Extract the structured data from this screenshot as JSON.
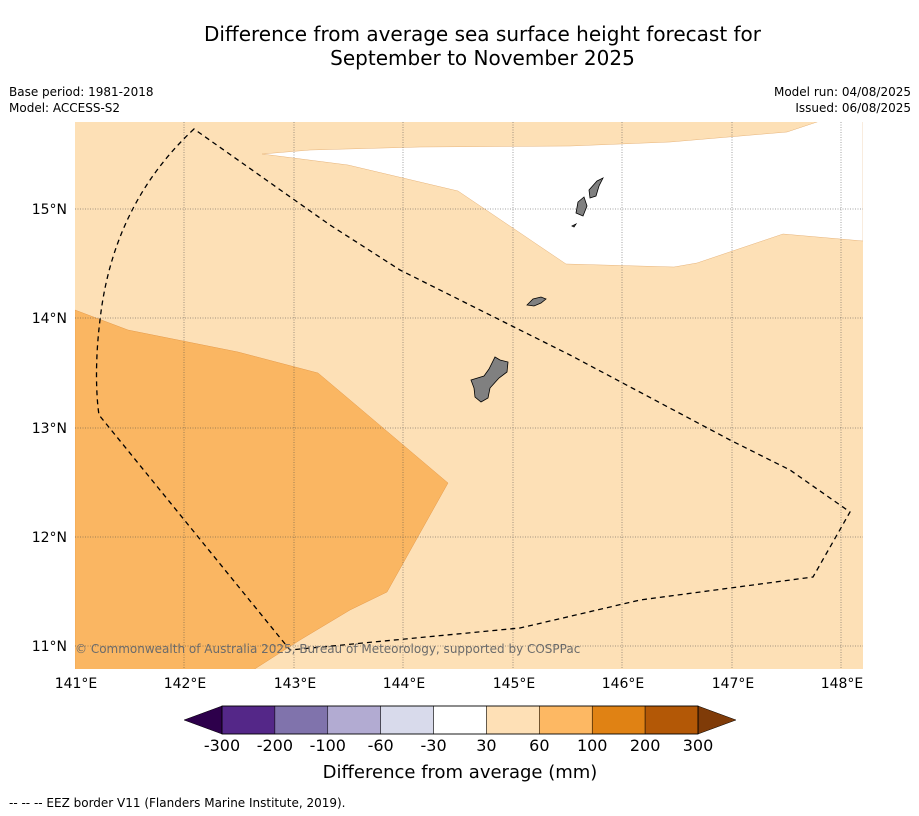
{
  "header": {
    "title_line1": "Difference from average sea surface height forecast for",
    "title_line2": "September to November 2025",
    "base_period": "Base period: 1981-2018",
    "model": "Model: ACCESS-S2",
    "model_run": "Model run: 04/08/2025",
    "issued": "Issued: 06/08/2025"
  },
  "map": {
    "lon_range": [
      141,
      148.2
    ],
    "lat_range": [
      10.8,
      15.8
    ],
    "lon_ticks": [
      "141°E",
      "142°E",
      "143°E",
      "144°E",
      "145°E",
      "146°E",
      "147°E",
      "148°E"
    ],
    "lat_ticks": [
      "15°N",
      "14°N",
      "13°N",
      "12°N",
      "11°N"
    ],
    "copyright": "© Commonwealth of Australia 2025, Bureau of Meteorology, supported by COSPPac",
    "regions": [
      {
        "name": "30 to 60 mm",
        "color": "#fde0b6"
      },
      {
        "name": "60 to 100 mm",
        "color": "#fab662"
      },
      {
        "name": "-30 to 30 mm",
        "color": "#ffffff"
      }
    ],
    "eez_border": "EEZ border V11 (Flanders Marine Institute, 2019)."
  },
  "colorbar": {
    "label": "Difference from average (mm)",
    "ticks": [
      "-300",
      "-200",
      "-100",
      "-60",
      "-30",
      "30",
      "60",
      "100",
      "200",
      "300"
    ],
    "colors": [
      "#542788",
      "#8073ac",
      "#b2abd2",
      "#d8daeb",
      "#ffffff",
      "#fee0b6",
      "#fdb863",
      "#e08214",
      "#b35806"
    ],
    "extend_low_color": "#2d004b",
    "extend_high_color": "#7f3b08"
  },
  "footer": {
    "legend_text": "--  --  -- EEZ border V11 (Flanders Marine Institute, 2019)."
  }
}
